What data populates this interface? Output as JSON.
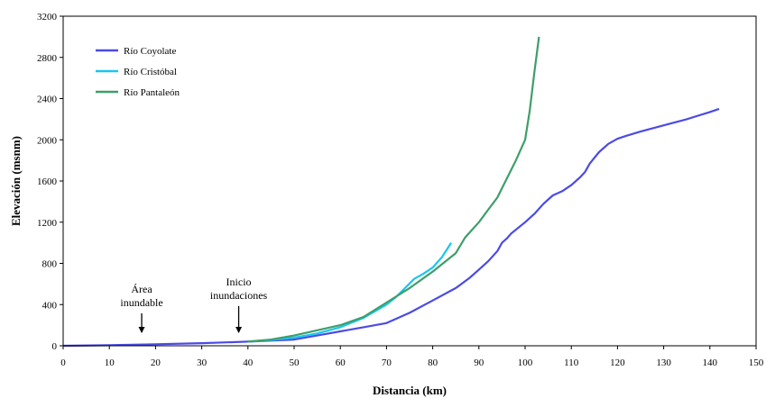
{
  "chart_data": {
    "type": "line",
    "title": "",
    "xlabel": "Distancia (km)",
    "ylabel": "Elevación (msnm)",
    "xlim": [
      0,
      150
    ],
    "ylim": [
      0,
      3200
    ],
    "xticks": [
      0,
      10,
      20,
      30,
      40,
      50,
      60,
      70,
      80,
      90,
      100,
      110,
      120,
      130,
      140,
      150
    ],
    "yticks": [
      0,
      400,
      800,
      1200,
      1600,
      2000,
      2400,
      2800,
      3200
    ],
    "grid": false,
    "legend_position": "top-left",
    "series": [
      {
        "name": "Río Coyolate",
        "color": "#4b4be6",
        "x": [
          0,
          10,
          20,
          30,
          40,
          50,
          55,
          60,
          65,
          70,
          75,
          80,
          85,
          88,
          90,
          92,
          94,
          95,
          96,
          97,
          100,
          102,
          104,
          106,
          108,
          110,
          112,
          113,
          114,
          116,
          118,
          120,
          122,
          125,
          130,
          135,
          140,
          142
        ],
        "y": [
          0,
          5,
          15,
          25,
          40,
          60,
          100,
          140,
          180,
          220,
          320,
          440,
          560,
          660,
          740,
          820,
          920,
          1000,
          1040,
          1090,
          1200,
          1280,
          1380,
          1460,
          1500,
          1560,
          1640,
          1690,
          1770,
          1880,
          1960,
          2010,
          2040,
          2080,
          2140,
          2200,
          2270,
          2300
        ]
      },
      {
        "name": "Río Cristóbal",
        "color": "#19c6f0",
        "x": [
          40,
          45,
          50,
          55,
          60,
          65,
          70,
          72,
          74,
          76,
          78,
          80,
          82,
          84
        ],
        "y": [
          40,
          55,
          80,
          120,
          180,
          270,
          400,
          470,
          560,
          650,
          700,
          760,
          860,
          1000
        ]
      },
      {
        "name": "Río Pantaleón",
        "color": "#3e9e6a",
        "x": [
          40,
          45,
          50,
          55,
          60,
          65,
          70,
          75,
          80,
          85,
          87,
          90,
          92,
          94,
          96,
          98,
          100,
          101,
          102,
          103
        ],
        "y": [
          40,
          60,
          100,
          150,
          200,
          280,
          420,
          560,
          720,
          900,
          1050,
          1200,
          1320,
          1440,
          1620,
          1800,
          2000,
          2280,
          2650,
          3000
        ]
      }
    ],
    "annotations": [
      {
        "label_lines": [
          "Área",
          "inundable"
        ],
        "x": 17
      },
      {
        "label_lines": [
          "Inicio",
          "inundaciones"
        ],
        "x": 38
      }
    ]
  }
}
